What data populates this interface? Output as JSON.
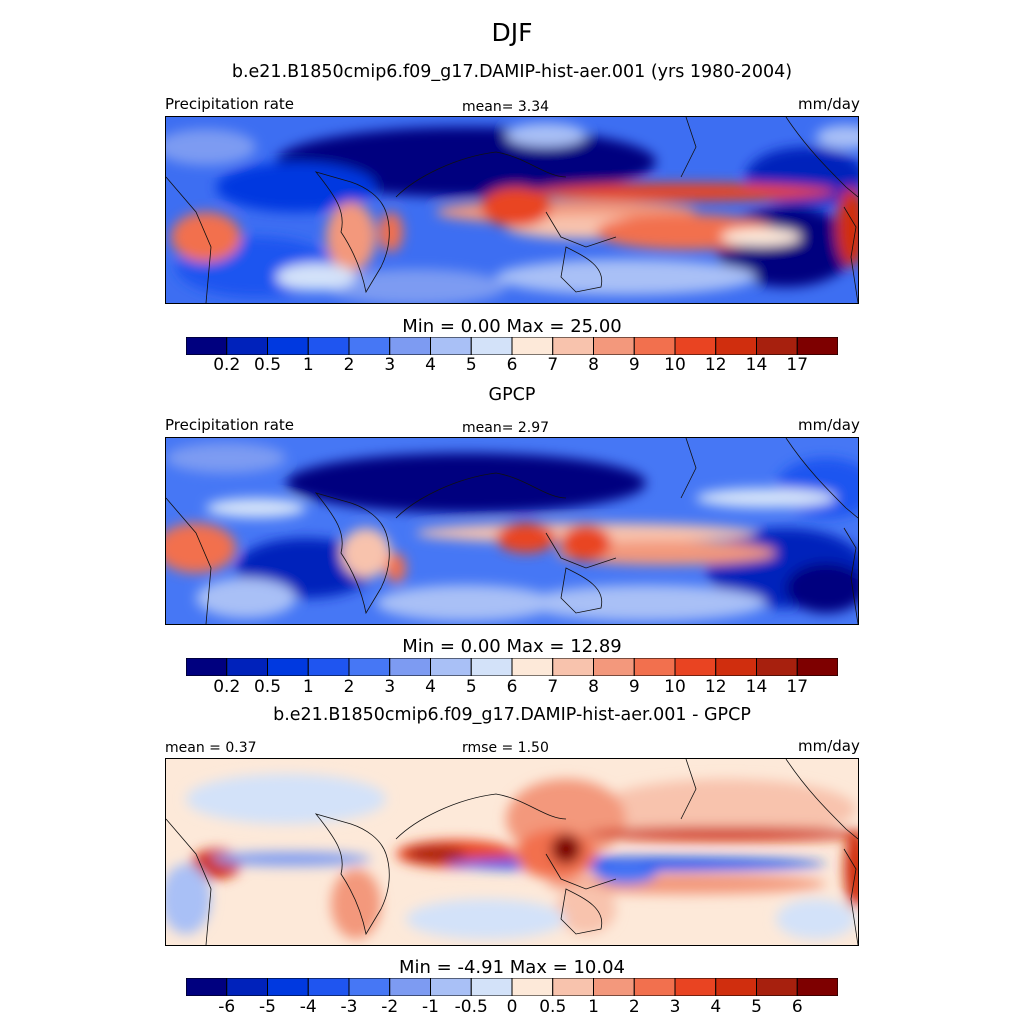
{
  "title": "DJF",
  "subtitle": "b.e21.B1850cmip6.f09_g17.DAMIP-hist-aer.001 (yrs 1980-2004)",
  "panels": [
    {
      "left_label": "Precipitation rate",
      "center_label": "mean=   3.34",
      "right_label": "mm/day",
      "stats": "Min =   0.00 Max =  25.00",
      "ticks": [
        "0.2",
        "0.5",
        "1",
        "2",
        "3",
        "4",
        "5",
        "6",
        "7",
        "8",
        "9",
        "10",
        "12",
        "14",
        "17"
      ]
    },
    {
      "heading": "GPCP",
      "left_label": "Precipitation rate",
      "center_label": "mean=   2.97",
      "right_label": "mm/day",
      "stats": "Min =   0.00 Max =  12.89",
      "ticks": [
        "0.2",
        "0.5",
        "1",
        "2",
        "3",
        "4",
        "5",
        "6",
        "7",
        "8",
        "9",
        "10",
        "12",
        "14",
        "17"
      ]
    },
    {
      "heading": "b.e21.B1850cmip6.f09_g17.DAMIP-hist-aer.001 - GPCP",
      "left_label": "mean =   0.37",
      "center_label": "rmse =   1.50",
      "right_label": "mm/day",
      "stats": "Min =  -4.91 Max =  10.04",
      "ticks": [
        "-6",
        "-5",
        "-4",
        "-3",
        "-2",
        "-1",
        "-0.5",
        "0",
        "0.5",
        "1",
        "2",
        "3",
        "4",
        "5",
        "6"
      ]
    }
  ],
  "colorbar_colors": [
    "#00007f",
    "#0022bb",
    "#0039e0",
    "#1f55f0",
    "#4677f5",
    "#7d9bf2",
    "#a9c0f6",
    "#d3e2f9",
    "#fde9d9",
    "#f8c3ad",
    "#f3987c",
    "#f2704e",
    "#e94422",
    "#d02e0e",
    "#a7200e",
    "#7e0000"
  ],
  "chart_data": [
    {
      "type": "heatmap",
      "title": "b.e21.B1850cmip6.f09_g17.DAMIP-hist-aer.001 (yrs 1980-2004)",
      "variable": "Precipitation rate",
      "units": "mm/day",
      "mean": 3.34,
      "min": 0.0,
      "max": 25.0,
      "colorbar_levels": [
        0.2,
        0.5,
        1,
        2,
        3,
        4,
        5,
        6,
        7,
        8,
        9,
        10,
        12,
        14,
        17
      ]
    },
    {
      "type": "heatmap",
      "title": "GPCP",
      "variable": "Precipitation rate",
      "units": "mm/day",
      "mean": 2.97,
      "min": 0.0,
      "max": 12.89,
      "colorbar_levels": [
        0.2,
        0.5,
        1,
        2,
        3,
        4,
        5,
        6,
        7,
        8,
        9,
        10,
        12,
        14,
        17
      ]
    },
    {
      "type": "heatmap",
      "title": "b.e21.B1850cmip6.f09_g17.DAMIP-hist-aer.001 - GPCP",
      "units": "mm/day",
      "mean": 0.37,
      "rmse": 1.5,
      "min": -4.91,
      "max": 10.04,
      "colorbar_levels": [
        -6,
        -5,
        -4,
        -3,
        -2,
        -1,
        -0.5,
        0,
        0.5,
        1,
        2,
        3,
        4,
        5,
        6
      ]
    }
  ]
}
